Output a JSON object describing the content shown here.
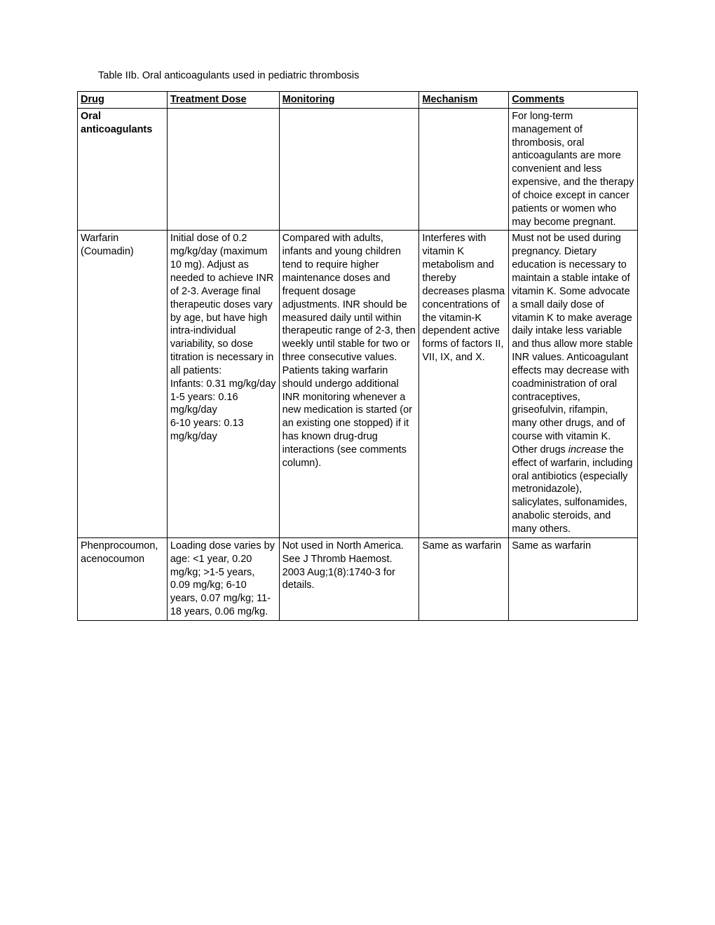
{
  "title": "Table IIb. Oral anticoagulants used in pediatric thrombosis",
  "columns": [
    "Drug",
    "Treatment Dose",
    "Monitoring",
    "Mechanism",
    "Comments"
  ],
  "rows": [
    {
      "drug": "Oral anticoagulants",
      "drug_bold": true,
      "dose": "",
      "monitoring": "",
      "mechanism": "",
      "comments": "For long-term management of thrombosis, oral anticoagulants are more convenient and less expensive, and the therapy of choice except in cancer patients or women who may become pregnant."
    },
    {
      "drug": "Warfarin (Coumadin)",
      "dose": "Initial dose of 0.2 mg/kg/day (maximum 10 mg). Adjust as needed to achieve INR of 2-3. Average final therapeutic doses vary by age, but have high intra-individual variability, so dose titration is necessary in all patients:\nInfants: 0.31 mg/kg/day\n1-5 years: 0.16 mg/kg/day\n6-10 years: 0.13 mg/kg/day",
      "monitoring": "Compared with adults, infants and young children tend to require higher maintenance doses and frequent dosage adjustments. INR should be measured daily until within therapeutic range of 2-3, then weekly until stable for two or three consecutive values. Patients taking warfarin should undergo additional INR monitoring whenever a new medication is started (or an existing one stopped) if it has known drug-drug interactions (see comments column).",
      "mechanism": "Interferes with vitamin K metabolism and thereby decreases plasma concentrations of the vitamin-K dependent active forms of factors II, VII, IX, and X.",
      "comments_pre": "Must not be used during pregnancy. Dietary education is necessary to maintain a stable intake of vitamin K. Some advocate a small daily dose of vitamin K to make average daily intake less variable and thus allow more stable INR values. Anticoagulant effects may decrease with coadministration of oral contraceptives, griseofulvin, rifampin, many other drugs, and of course with vitamin K.\nOther drugs ",
      "comments_italic": "increase",
      "comments_post": " the effect of warfarin, including oral antibiotics (especially metronidazole), salicylates, sulfonamides, anabolic steroids, and many others."
    },
    {
      "drug": "Phenprocoumon, acenocoumon",
      "dose": "Loading dose varies by age: <1 year, 0.20 mg/kg; >1-5 years, 0.09 mg/kg; 6-10 years, 0.07 mg/kg; 11-18 years, 0.06 mg/kg.",
      "monitoring": "Not used in North America. See J Thromb Haemost. 2003 Aug;1(8):1740-3 for details.",
      "mechanism": "Same as warfarin",
      "comments": "Same as warfarin"
    }
  ]
}
